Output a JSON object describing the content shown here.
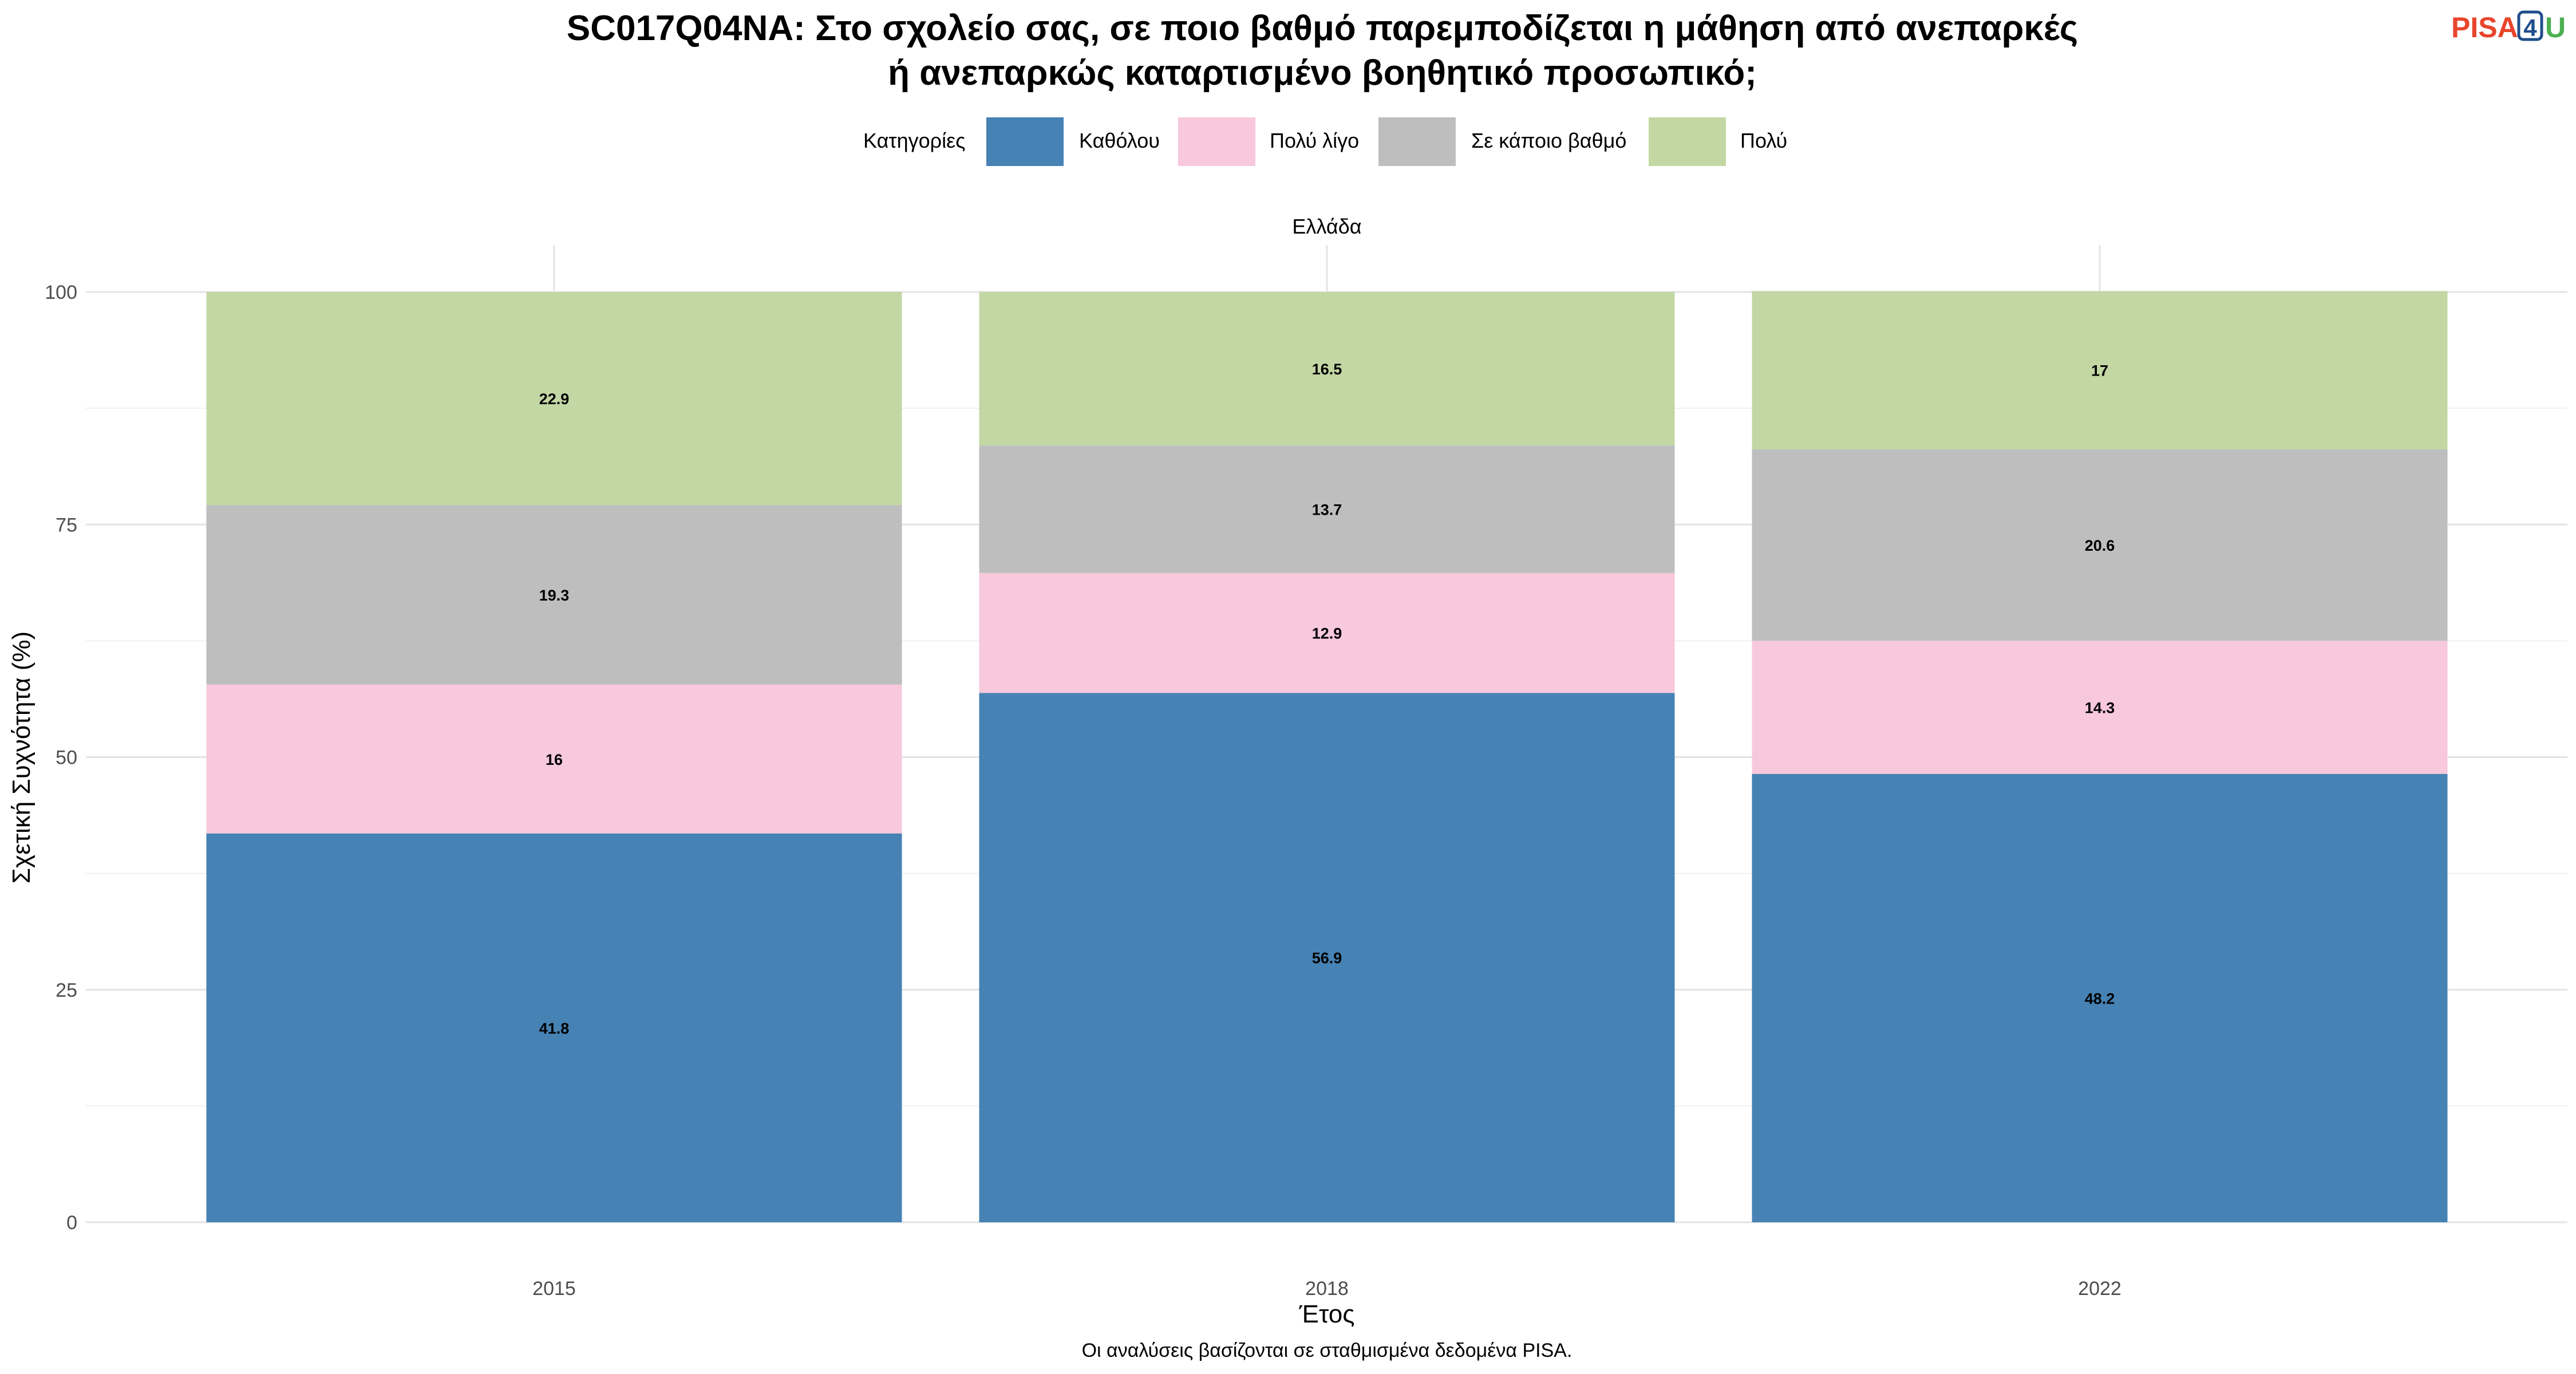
{
  "chart_data": {
    "type": "bar",
    "stacked": true,
    "title_lines": [
      "SC017Q04NA: Στο σχολείο σας, σε ποιο βαθμό παρεμποδίζεται η μάθηση από ανεπαρκές",
      "ή ανεπαρκώς καταρτισμένο βοηθητικό προσωπικό;"
    ],
    "legend_title": "Κατηγορίες",
    "legend_position": "top",
    "facet_label": "Ελλάδα",
    "categories": [
      "2015",
      "2018",
      "2022"
    ],
    "series": [
      {
        "name": "Καθόλου",
        "color": "#4682B4",
        "values": [
          41.8,
          56.9,
          48.2
        ],
        "labels": [
          "41.8",
          "56.9",
          "48.2"
        ]
      },
      {
        "name": "Πολύ λίγο",
        "color": "#F8C8DC",
        "values": [
          16,
          12.9,
          14.3
        ],
        "labels": [
          "16",
          "12.9",
          "14.3"
        ]
      },
      {
        "name": "Σε κάποιο βαθμό",
        "color": "#BEBEBE",
        "values": [
          19.3,
          13.7,
          20.6
        ],
        "labels": [
          "19.3",
          "13.7",
          "20.6"
        ]
      },
      {
        "name": "Πολύ",
        "color": "#C3D7A4",
        "values": [
          22.9,
          16.5,
          17
        ],
        "labels": [
          "22.9",
          "16.5",
          "17"
        ]
      }
    ],
    "xlabel": "Έτος",
    "ylabel": "Σχετική Συχνότητα (%)",
    "ylim": [
      0,
      100
    ],
    "yticks": [
      0,
      25,
      50,
      75,
      100
    ],
    "grid": true,
    "caption": "Οι αναλύσεις βασίζονται σε σταθμισμένα δεδομένα PISA."
  },
  "logo": {
    "part1": "PISA",
    "part2": "4",
    "part3": "U",
    "colors": [
      "#E8452C",
      "#1F4E8C",
      "#4CAF50"
    ]
  }
}
